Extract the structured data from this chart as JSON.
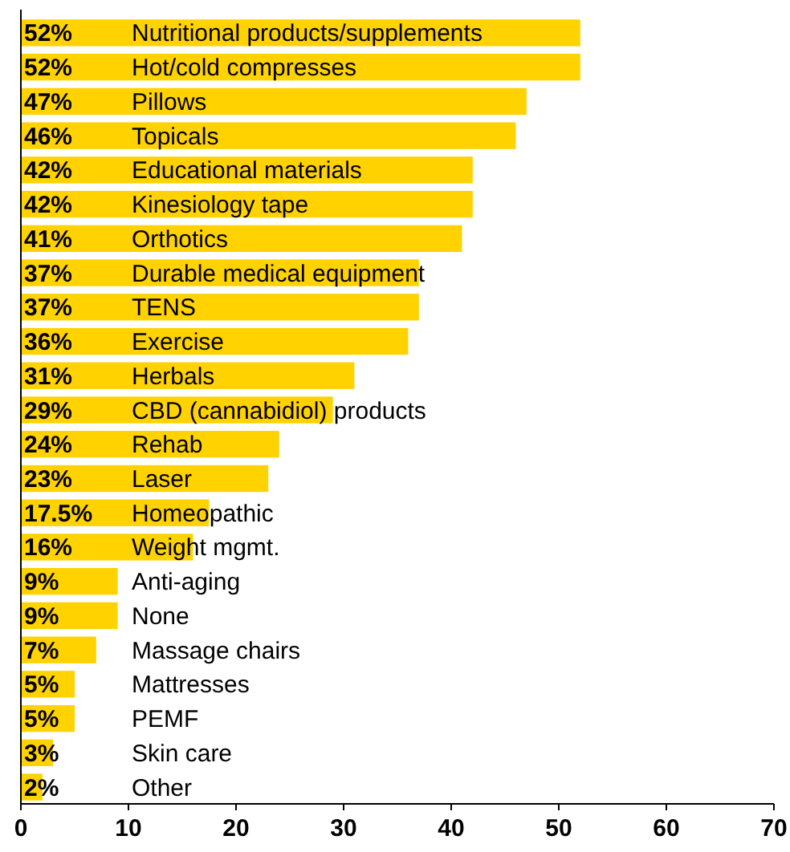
{
  "chart_data": {
    "type": "bar",
    "orientation": "horizontal",
    "categories": [
      "Nutritional products/supplements",
      "Hot/cold compresses",
      "Pillows",
      "Topicals",
      "Educational materials",
      "Kinesiology tape",
      "Orthotics",
      "Durable medical equipment",
      "TENS",
      "Exercise",
      "Herbals",
      "CBD (cannabidiol) products",
      "Rehab",
      "Laser",
      "Homeopathic",
      "Weight mgmt.",
      "Anti-aging",
      "None",
      "Massage chairs",
      "Mattresses",
      "PEMF",
      "Skin care",
      "Other"
    ],
    "values": [
      52,
      52,
      47,
      46,
      42,
      42,
      41,
      37,
      37,
      36,
      31,
      29,
      24,
      23,
      17.5,
      16,
      9,
      9,
      7,
      5,
      5,
      3,
      2
    ],
    "value_labels": [
      "52%",
      "52%",
      "47%",
      "46%",
      "42%",
      "42%",
      "41%",
      "37%",
      "37%",
      "36%",
      "31%",
      "29%",
      "24%",
      "23%",
      "17.5%",
      "16%",
      "9%",
      "9%",
      "7%",
      "5%",
      "5%",
      "3%",
      "2%"
    ],
    "color": "#ffd200",
    "xlim": [
      0,
      70
    ],
    "xticks": [
      0,
      10,
      20,
      30,
      40,
      50,
      60,
      70
    ]
  }
}
